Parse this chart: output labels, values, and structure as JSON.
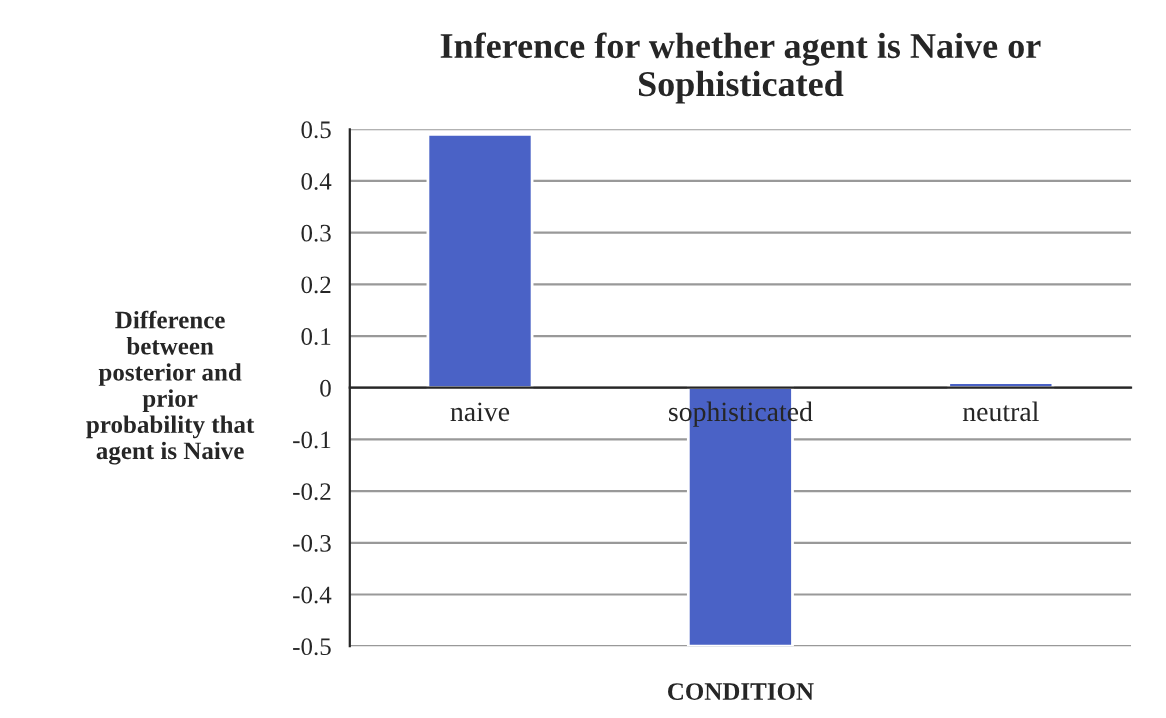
{
  "chart_data": {
    "type": "bar",
    "title": "Inference for whether agent is Naive or\nSophisticated",
    "xlabel": "CONDITION",
    "ylabel": "Difference\nbetween\nposterior and\nprior\nprobability that\nagent is Naive",
    "categories": [
      "naive",
      "sophisticated",
      "neutral"
    ],
    "values": [
      0.49,
      -0.5,
      0.01
    ],
    "color": "#4a62c6",
    "ylim": [
      -0.5,
      0.5
    ],
    "yticks": [
      -0.5,
      -0.4,
      -0.3,
      -0.2,
      -0.1,
      0,
      0.1,
      0.2,
      0.3,
      0.4,
      0.5
    ],
    "grid": "y",
    "legend": false
  }
}
